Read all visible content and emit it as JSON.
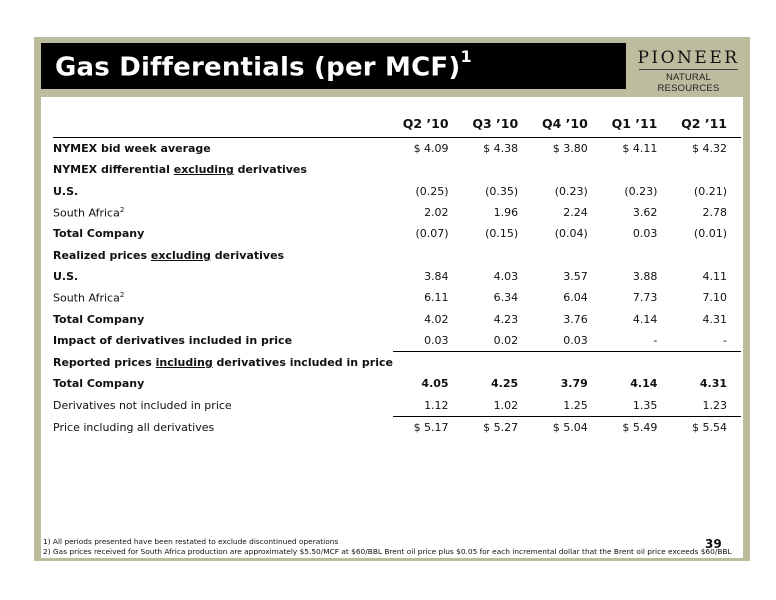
{
  "title": "Gas Differentials (per MCF)",
  "title_sup": "1",
  "logo": {
    "main": "PIONEER",
    "sub": "NATURAL RESOURCES"
  },
  "columns": [
    "Q2 ’10",
    "Q3 ’10",
    "Q4 ’10",
    "Q1 ’11",
    "Q2 ’11"
  ],
  "rows": [
    {
      "label": "NYMEX bid week average",
      "values": [
        "$ 4.09",
        "$ 4.38",
        "$ 3.80",
        "$ 4.11",
        "$ 4.32"
      ]
    },
    {
      "label_pre": "NYMEX differential ",
      "label_u": "excluding",
      "label_post": " derivatives",
      "values": []
    },
    {
      "label": "U.S.",
      "values": [
        "(0.25)",
        "(0.35)",
        "(0.23)",
        "(0.23)",
        "(0.21)"
      ]
    },
    {
      "label": "South Africa",
      "label_sup": "2",
      "values": [
        "2.02",
        "1.96",
        "2.24",
        "3.62",
        "2.78"
      ]
    },
    {
      "label": "Total Company",
      "values": [
        "(0.07)",
        "(0.15)",
        "(0.04)",
        "0.03",
        "(0.01)"
      ]
    },
    {
      "label_pre": "Realized prices ",
      "label_u": "excluding",
      "label_post": " derivatives",
      "values": []
    },
    {
      "label": "U.S.",
      "values": [
        "3.84",
        "4.03",
        "3.57",
        "3.88",
        "4.11"
      ]
    },
    {
      "label": "South Africa",
      "label_sup": "2",
      "values": [
        "6.11",
        "6.34",
        "6.04",
        "7.73",
        "7.10"
      ]
    },
    {
      "label": "Total Company",
      "values": [
        "4.02",
        "4.23",
        "3.76",
        "4.14",
        "4.31"
      ]
    },
    {
      "label": "Impact of derivatives included in price",
      "values": [
        "0.03",
        "0.02",
        "0.03",
        "-",
        "-"
      ]
    },
    {
      "label_pre": "Reported prices ",
      "label_u": "including",
      "label_post": " derivatives included in price",
      "values": []
    },
    {
      "label": "Total Company",
      "values": [
        "4.05",
        "4.25",
        "3.79",
        "4.14",
        "4.31"
      ]
    },
    {
      "label": "Derivatives not included in price",
      "values": [
        "1.12",
        "1.02",
        "1.25",
        "1.35",
        "1.23"
      ]
    },
    {
      "label": "Price including all derivatives",
      "values": [
        "$  5.17",
        "$  5.27",
        "$ 5.04",
        "$ 5.49",
        "$ 5.54"
      ]
    }
  ],
  "footnotes": [
    "1) All periods presented have been restated to exclude discontinued operations",
    "2) Gas prices received for South Africa production are approximately $5.50/MCF at $60/BBL Brent oil price plus $0.05 for each incremental dollar that the Brent oil price exceeds $60/BBL"
  ],
  "page_number": "39"
}
